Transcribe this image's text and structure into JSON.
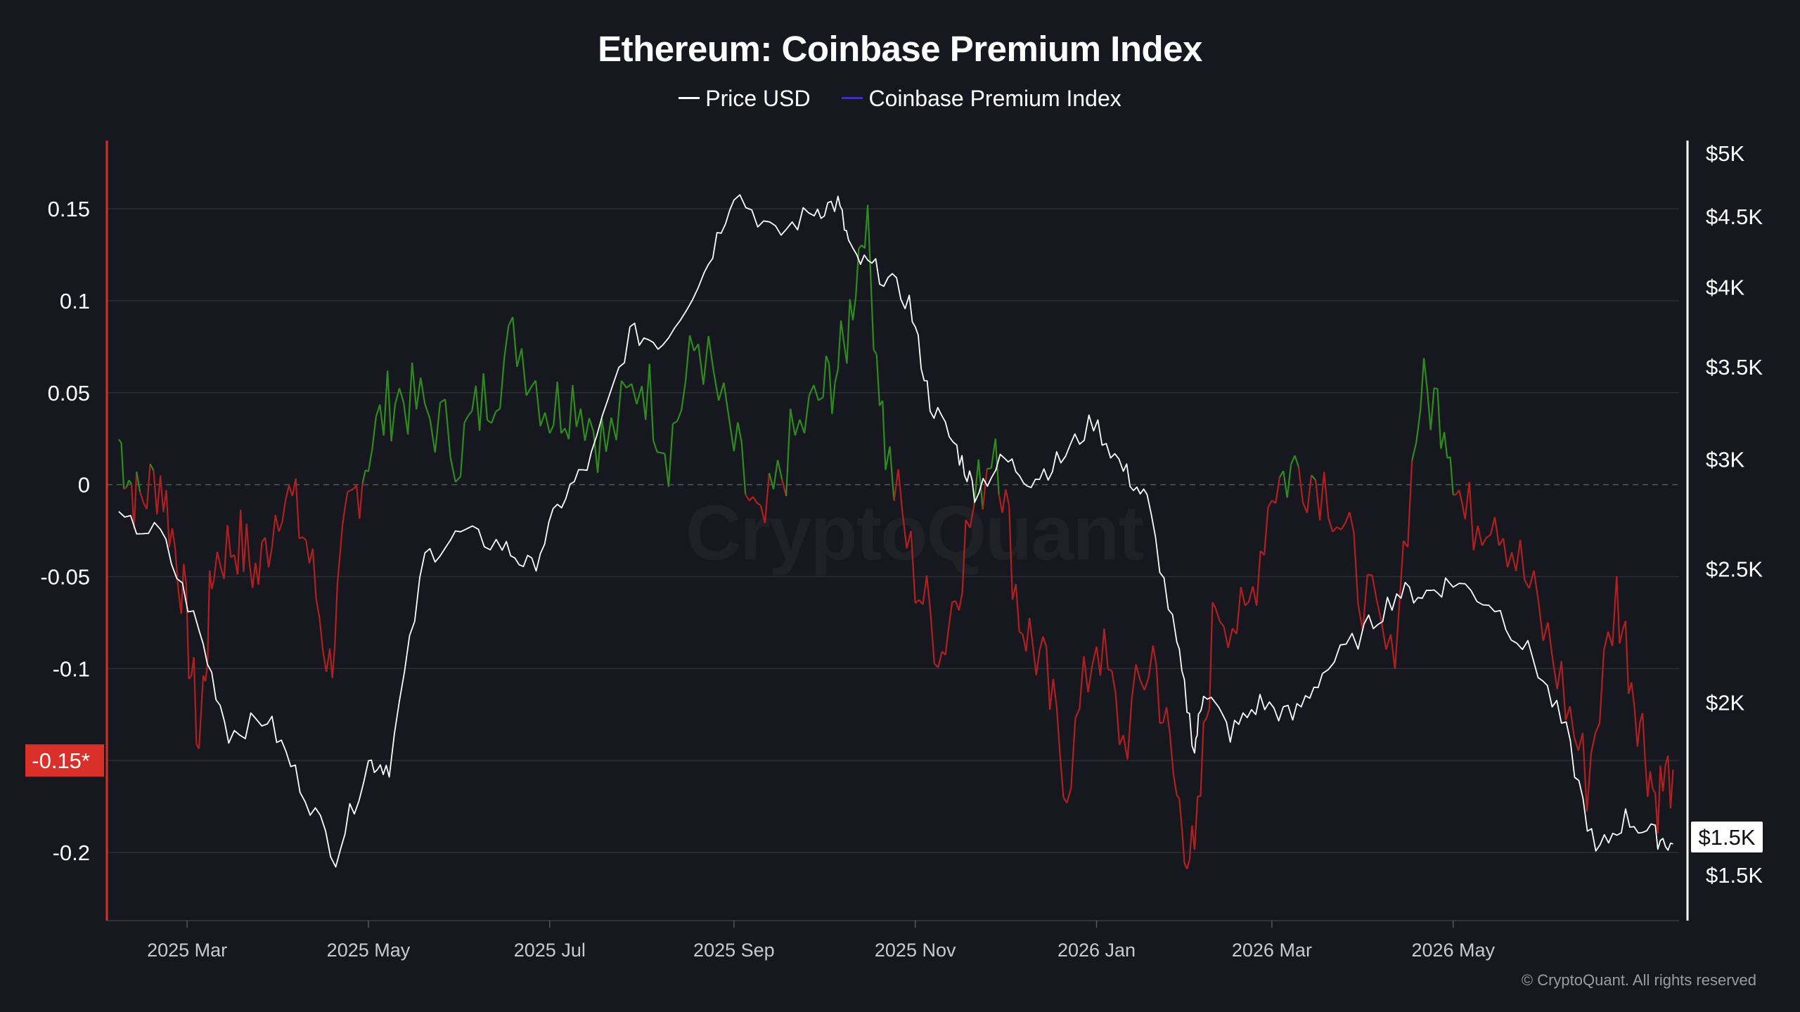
{
  "chart_data": {
    "type": "line",
    "title": "Ethereum: Coinbase Premium Index",
    "series": [
      {
        "name": "Price USD",
        "axis": "right",
        "color": "#ffffff",
        "x": [
          "2025-02-06",
          "2025-02-20",
          "2025-03-05",
          "2025-03-15",
          "2025-03-28",
          "2025-04-08",
          "2025-04-20",
          "2025-05-01",
          "2025-05-08",
          "2025-05-20",
          "2025-06-01",
          "2025-06-15",
          "2025-06-25",
          "2025-07-05",
          "2025-07-15",
          "2025-07-28",
          "2025-08-08",
          "2025-08-22",
          "2025-09-01",
          "2025-09-15",
          "2025-09-28",
          "2025-10-06",
          "2025-10-11",
          "2025-10-20",
          "2025-10-30",
          "2025-11-06",
          "2025-11-15",
          "2025-11-21",
          "2025-12-01",
          "2025-12-10",
          "2025-12-20",
          "2025-12-31",
          "2026-01-10",
          "2026-01-18",
          "2026-01-28",
          "2026-02-03",
          "2026-02-06",
          "2026-02-15",
          "2026-02-25",
          "2026-03-08",
          "2026-03-18",
          "2026-04-01",
          "2026-04-12",
          "2026-04-22",
          "2026-05-01",
          "2026-05-15",
          "2026-05-28",
          "2026-06-08",
          "2026-06-18",
          "2026-06-28",
          "2026-07-08",
          "2026-07-14"
        ],
        "values": [
          2700,
          2650,
          2250,
          1900,
          1950,
          1750,
          1550,
          1810,
          1800,
          2550,
          2650,
          2600,
          2500,
          2800,
          3000,
          3700,
          3650,
          4100,
          4700,
          4350,
          4550,
          4600,
          4200,
          4100,
          3900,
          3300,
          3050,
          2850,
          3000,
          2900,
          3000,
          3200,
          2950,
          2800,
          2200,
          1850,
          2050,
          1900,
          2000,
          1950,
          2100,
          2250,
          2400,
          2400,
          2450,
          2350,
          2150,
          1900,
          1550,
          1650,
          1600,
          1580
        ]
      },
      {
        "name": "Coinbase Premium Index",
        "axis": "left",
        "color": "#3b33b8",
        "x": [
          "2025-02-06",
          "2025-02-12",
          "2025-02-20",
          "2025-02-27",
          "2025-03-05",
          "2025-03-10",
          "2025-03-18",
          "2025-03-25",
          "2025-04-02",
          "2025-04-10",
          "2025-04-18",
          "2025-04-24",
          "2025-05-01",
          "2025-05-10",
          "2025-05-20",
          "2025-06-01",
          "2025-06-10",
          "2025-06-20",
          "2025-07-01",
          "2025-07-10",
          "2025-07-20",
          "2025-08-01",
          "2025-08-10",
          "2025-08-20",
          "2025-09-01",
          "2025-09-10",
          "2025-09-20",
          "2025-10-01",
          "2025-10-08",
          "2025-10-15",
          "2025-10-22",
          "2025-11-01",
          "2025-11-10",
          "2025-11-18",
          "2025-11-28",
          "2025-12-06",
          "2025-12-14",
          "2025-12-22",
          "2026-01-01",
          "2026-01-10",
          "2026-01-20",
          "2026-01-28",
          "2026-02-03",
          "2026-02-10",
          "2026-02-20",
          "2026-03-01",
          "2026-03-10",
          "2026-03-20",
          "2026-03-30",
          "2026-04-10",
          "2026-04-20",
          "2026-04-28",
          "2026-05-05",
          "2026-05-15",
          "2026-05-25",
          "2026-06-05",
          "2026-06-15",
          "2026-06-25",
          "2026-07-02",
          "2026-07-08",
          "2026-07-14"
        ],
        "values": [
          0.025,
          -0.01,
          0.005,
          -0.05,
          -0.14,
          -0.04,
          -0.03,
          -0.05,
          0.0,
          -0.03,
          -0.1,
          -0.02,
          0.02,
          0.05,
          0.04,
          0.02,
          0.05,
          0.08,
          0.04,
          0.05,
          0.02,
          0.06,
          0.02,
          0.08,
          0.02,
          -0.03,
          0.02,
          0.05,
          0.07,
          0.15,
          0.02,
          -0.05,
          -0.09,
          -0.03,
          0.03,
          -0.07,
          -0.1,
          -0.16,
          -0.08,
          -0.14,
          -0.09,
          -0.17,
          -0.21,
          -0.06,
          -0.08,
          0.0,
          0.01,
          0.0,
          -0.05,
          -0.1,
          0.05,
          0.04,
          -0.02,
          -0.01,
          -0.05,
          -0.1,
          -0.16,
          -0.06,
          -0.12,
          -0.17,
          -0.155
        ]
      }
    ],
    "x_ticks": [
      "2025 Mar",
      "2025 May",
      "2025 Jul",
      "2025 Sep",
      "2025 Nov",
      "2026 Jan",
      "2026 Mar",
      "2026 May"
    ],
    "x_range": [
      "2025-02-02",
      "2026-07-16"
    ],
    "left_axis": {
      "ticks": [
        0.15,
        0.1,
        0.05,
        0,
        -0.05,
        -0.1,
        -0.15,
        -0.2
      ],
      "tick_labels": [
        "0.15",
        "0.1",
        "0.05",
        "0",
        "-0.05",
        "-0.1",
        "-0.15*",
        "-0.2"
      ],
      "ylim": [
        -0.24,
        0.185
      ],
      "highlighted_label": "-0.15*"
    },
    "right_axis": {
      "scale": "log",
      "ticks": [
        5000,
        4500,
        4000,
        3500,
        3000,
        2500,
        2000,
        1500
      ],
      "tick_labels": [
        "$5K",
        "$4.5K",
        "$4K",
        "$3.5K",
        "$3K",
        "$2.5K",
        "$2K",
        "$1.5K"
      ],
      "current_label": "$1.5K"
    },
    "grid": true,
    "legend_position": "top-center",
    "positive_color": "#2e8b1e",
    "negative_color": "#b02020",
    "marker_color": "#d9302a",
    "watermark": "CryptoQuant",
    "copyright": "© CryptoQuant. All rights reserved"
  }
}
